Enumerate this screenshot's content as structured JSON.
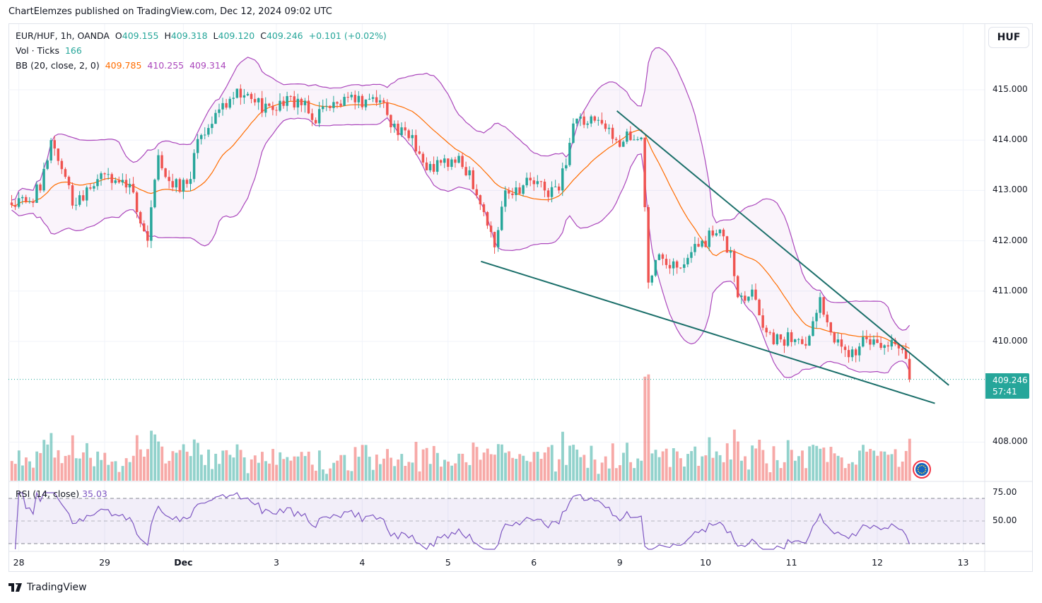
{
  "publish_line": "ChartElemzes published on TradingView.com, Dec 12, 2024 09:02 UTC",
  "legend": {
    "symbol": "EUR/HUF, 1h, OANDA",
    "o_label": "O",
    "o": "409.155",
    "h_label": "H",
    "h": "409.318",
    "l_label": "L",
    "l": "409.120",
    "c_label": "C",
    "c": "409.246",
    "change": "+0.101 (+0.02%)",
    "vol_label": "Vol · Ticks",
    "vol": "166",
    "bb_label": "BB (20, close, 2, 0)",
    "bb_basis": "409.785",
    "bb_upper": "410.255",
    "bb_lower": "409.314"
  },
  "currency_button": "HUF",
  "last_price": "409.246",
  "countdown": "57:41",
  "rsi_label": "RSI (14, close)",
  "rsi_value": "35.03",
  "footer_logo": "TradingView",
  "colors": {
    "up": "#26a69a",
    "down": "#ef5350",
    "bb_basis": "#ff6d00",
    "bb_band": "#ab47bc",
    "rsi": "#7e57c2",
    "trendline": "#1b6f6a"
  },
  "chart_data": {
    "type": "candlestick",
    "title": "EUR/HUF, 1h, OANDA",
    "price_ticks": [
      "415.000",
      "414.000",
      "413.000",
      "412.000",
      "411.000",
      "410.000",
      "408.000"
    ],
    "price_tick_values": [
      415,
      414,
      413,
      412,
      411,
      410,
      408
    ],
    "ylim": [
      407.8,
      416.1
    ],
    "x_ticks": [
      "28",
      "29",
      "Dec",
      "3",
      "4",
      "5",
      "6",
      "9",
      "10",
      "11",
      "12",
      "13"
    ],
    "x_tick_hours": [
      2,
      26,
      48,
      74,
      98,
      122,
      146,
      170,
      194,
      218,
      242,
      266
    ],
    "rsi_ticks": [
      "75.00",
      "50.00"
    ],
    "rsi_tick_values": [
      75,
      50
    ],
    "rsi_bands": [
      70,
      30
    ],
    "close_keypoints_hour": [
      0,
      4,
      8,
      11,
      15,
      17,
      21,
      25,
      29,
      33,
      35,
      38,
      41,
      45,
      49,
      53,
      57,
      61,
      65,
      68,
      72,
      76,
      80,
      84,
      88,
      92,
      96,
      100,
      104,
      108,
      112,
      116,
      120,
      124,
      128,
      132,
      135,
      138,
      141,
      145,
      149,
      153,
      157,
      161,
      165,
      169,
      173,
      176,
      178,
      181,
      185,
      189,
      193,
      197,
      201,
      203,
      207,
      211,
      215,
      219,
      223,
      226,
      229,
      233,
      237,
      241,
      245,
      249,
      251
    ],
    "close_keypoints": [
      412.71,
      412.78,
      413.0,
      414.0,
      413.27,
      412.7,
      413.06,
      413.34,
      413.2,
      413.13,
      412.57,
      412.0,
      413.7,
      413.06,
      413.13,
      414.1,
      414.54,
      414.82,
      414.89,
      414.75,
      414.68,
      414.68,
      414.82,
      414.4,
      414.68,
      414.68,
      414.75,
      414.82,
      414.75,
      414.1,
      414.1,
      413.4,
      413.55,
      413.55,
      413.4,
      412.57,
      411.87,
      413.0,
      413.06,
      413.2,
      413.0,
      413.0,
      414.33,
      414.33,
      414.33,
      414.0,
      414.0,
      414.05,
      411.17,
      411.73,
      411.59,
      411.66,
      412.0,
      412.15,
      411.8,
      410.88,
      411.03,
      410.18,
      410.04,
      410.04,
      410.11,
      410.88,
      410.18,
      409.83,
      409.9,
      410.04,
      409.9,
      409.83,
      409.246
    ],
    "trendlines": [
      {
        "name": "upper",
        "from": {
          "hour": 169.2,
          "price": 414.58
        },
        "to": {
          "hour": 262.0,
          "price": 409.13
        }
      },
      {
        "name": "lower",
        "from": {
          "hour": 131.2,
          "price": 411.59
        },
        "to": {
          "hour": 258.1,
          "price": 408.77
        }
      }
    ],
    "indicators": [
      "Volume",
      "Bollinger Bands (20, close, 2, 0)",
      "RSI (14, close)"
    ]
  }
}
